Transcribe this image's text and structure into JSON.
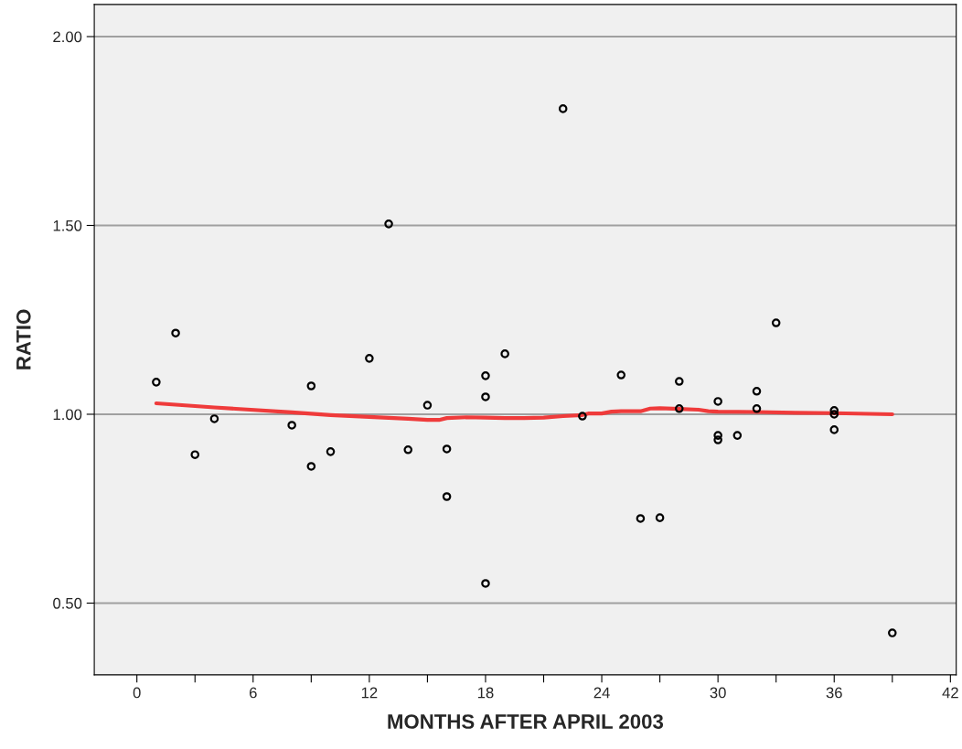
{
  "chart_data": {
    "type": "scatter",
    "xlabel": "MONTHS AFTER APRIL 2003",
    "ylabel": "RATIO",
    "xlim": [
      -2.2,
      42.3
    ],
    "ylim": [
      0.31,
      2.085
    ],
    "xticks": [
      0,
      {
        "value": 3,
        "label": null
      },
      6,
      {
        "value": 9,
        "label": null
      },
      12,
      {
        "value": 15,
        "label": null
      },
      18,
      {
        "value": 21,
        "label": null
      },
      24,
      {
        "value": 27,
        "label": null
      },
      30,
      {
        "value": 33,
        "label": null
      },
      36,
      {
        "value": 39,
        "label": null
      },
      42
    ],
    "yticks": [
      {
        "value": 0.5,
        "label": "0.50"
      },
      {
        "value": 1.0,
        "label": "1.00"
      },
      {
        "value": 1.5,
        "label": "1.50"
      },
      {
        "value": 2.0,
        "label": "2.00"
      }
    ],
    "grid": "y",
    "series": [
      {
        "marker": "circle",
        "color": "#000000",
        "x": [
          1,
          2,
          3,
          4,
          8,
          9,
          9,
          10,
          12,
          13,
          14,
          15,
          16,
          16,
          18,
          18,
          18,
          19,
          22,
          23,
          25,
          26,
          27,
          28,
          28,
          30,
          30,
          30,
          31,
          32,
          32,
          33,
          36,
          36,
          36,
          39
        ],
        "values": [
          1.085,
          1.215,
          0.893,
          0.988,
          0.971,
          1.075,
          0.862,
          0.901,
          1.148,
          1.504,
          0.906,
          1.024,
          0.908,
          0.782,
          1.102,
          1.046,
          0.552,
          1.16,
          1.809,
          0.995,
          1.104,
          0.724,
          0.726,
          1.087,
          1.015,
          1.034,
          0.944,
          0.932,
          0.944,
          1.061,
          1.015,
          1.242,
          1.01,
          1.0,
          0.959,
          0.421
        ]
      },
      {
        "type": "line",
        "marker": "none",
        "color": "#ef3b3b",
        "x": [
          1,
          4,
          8,
          10,
          12,
          14,
          15,
          15.6,
          16,
          17,
          18,
          19,
          20,
          21,
          22,
          23,
          23.3,
          24,
          24.5,
          25,
          26,
          26.5,
          27,
          28,
          29,
          29.5,
          30,
          32,
          34,
          36,
          39
        ],
        "values": [
          1.029,
          1.018,
          1.005,
          0.998,
          0.993,
          0.988,
          0.985,
          0.985,
          0.99,
          0.992,
          0.991,
          0.99,
          0.99,
          0.991,
          0.995,
          0.998,
          1.002,
          1.002,
          1.007,
          1.008,
          1.008,
          1.015,
          1.016,
          1.014,
          1.012,
          1.008,
          1.007,
          1.006,
          1.004,
          1.003,
          1.0
        ]
      }
    ]
  }
}
